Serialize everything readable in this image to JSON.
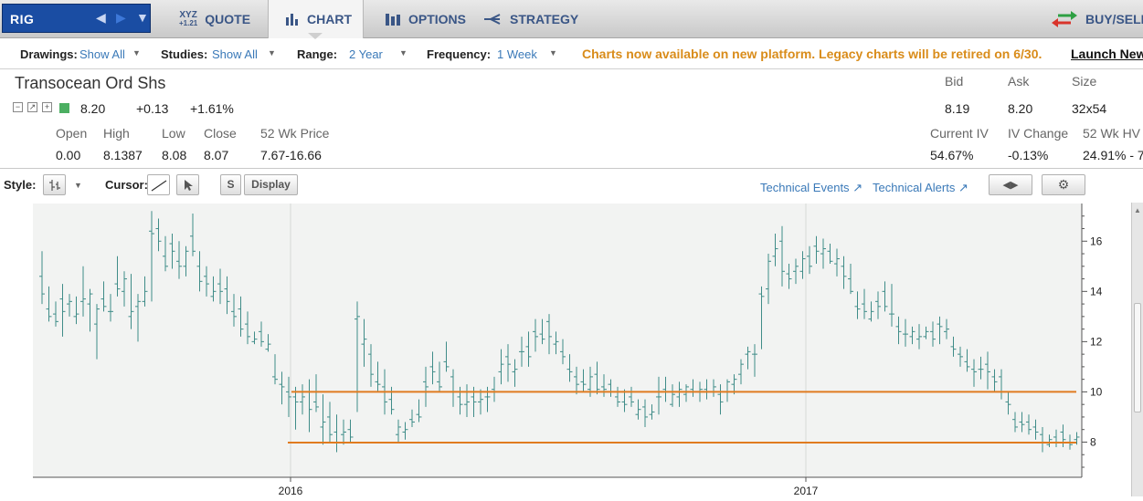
{
  "symbol": {
    "ticker": "RIG"
  },
  "tabs": [
    {
      "label": "QUOTE",
      "icon": "xyz-quote-icon",
      "icon_text": "XYZ",
      "icon_sub": "+1.21"
    },
    {
      "label": "CHART",
      "icon": "bar-chart-icon"
    },
    {
      "label": "OPTIONS",
      "icon": "options-icon"
    },
    {
      "label": "STRATEGY",
      "icon": "strategy-icon"
    },
    {
      "label": "BUY/SELL",
      "icon": "buy-sell-arrows-icon"
    }
  ],
  "active_tab": "CHART",
  "settings": {
    "drawings_label": "Drawings:",
    "drawings_value": "Show All",
    "studies_label": "Studies:",
    "studies_value": "Show All",
    "range_label": "Range:",
    "range_value": "2 Year",
    "frequency_label": "Frequency:",
    "frequency_value": "1 Week",
    "notice": "Charts now available on new platform. Legacy charts will be retired on 6/30.",
    "launch_link": "Launch New"
  },
  "quote": {
    "name": "Transocean Ord Shs",
    "last": "8.20",
    "change": "+0.13",
    "change_pct": "+1.61%",
    "open_label": "Open",
    "open": "0.00",
    "high_label": "High",
    "high": "8.1387",
    "low_label": "Low",
    "low": "8.08",
    "close_label": "Close",
    "close": "8.07",
    "wk52_label": "52 Wk Price",
    "wk52": "7.67-16.66",
    "bid_label": "Bid",
    "bid": "8.19",
    "ask_label": "Ask",
    "ask": "8.20",
    "size_label": "Size",
    "size": "32x54",
    "iv_label": "Current IV",
    "iv": "54.67%",
    "ivchg_label": "IV Change",
    "ivchg": "-0.13%",
    "hv_label": "52 Wk HV",
    "hv": "24.91% - 7"
  },
  "chart_toolbar": {
    "style_label": "Style:",
    "cursor_label": "Cursor:",
    "s_button": "S",
    "display_button": "Display",
    "tech_events": "Technical Events",
    "tech_alerts": "Technical Alerts"
  },
  "colors": {
    "bar": "#3f8c88",
    "support": "#e07b20",
    "accent_link": "#3a79b8",
    "notice": "#d98c1a"
  },
  "chart_data": {
    "type": "ohlc-bar",
    "frequency": "weekly",
    "x_ticks": [
      "2016",
      "2017"
    ],
    "y_ticks": [
      8,
      10,
      12,
      14,
      16
    ],
    "ylim": [
      6.6,
      17.5
    ],
    "bars": [
      [
        14.6,
        15.6,
        13.5,
        13.9
      ],
      [
        13.3,
        14.2,
        12.8,
        13.0
      ],
      [
        13.1,
        13.6,
        12.6,
        12.8
      ],
      [
        13.7,
        14.3,
        12.2,
        13.2
      ],
      [
        13.5,
        13.9,
        13.0,
        13.6
      ],
      [
        13.0,
        13.8,
        12.7,
        13.1
      ],
      [
        13.6,
        15.0,
        13.0,
        13.7
      ],
      [
        13.5,
        14.1,
        12.4,
        13.9
      ],
      [
        12.7,
        13.5,
        11.3,
        13.3
      ],
      [
        13.7,
        14.4,
        13.2,
        13.4
      ],
      [
        13.2,
        13.9,
        12.8,
        13.2
      ],
      [
        14.3,
        15.4,
        13.8,
        14.1
      ],
      [
        14.0,
        14.8,
        13.4,
        14.5
      ],
      [
        13.0,
        14.7,
        12.5,
        13.2
      ],
      [
        13.4,
        13.9,
        12.0,
        13.6
      ],
      [
        13.6,
        14.6,
        13.4,
        14.0
      ],
      [
        16.4,
        17.2,
        13.6,
        16.3
      ],
      [
        16.5,
        16.9,
        15.6,
        16.0
      ],
      [
        15.4,
        16.2,
        14.8,
        15.0
      ],
      [
        15.9,
        16.3,
        14.9,
        15.6
      ],
      [
        15.2,
        16.0,
        14.5,
        15.0
      ],
      [
        15.0,
        15.8,
        14.6,
        15.6
      ],
      [
        16.2,
        17.1,
        15.4,
        15.6
      ],
      [
        15.0,
        15.6,
        14.0,
        14.4
      ],
      [
        14.6,
        15.0,
        13.8,
        14.3
      ],
      [
        13.8,
        14.6,
        13.6,
        14.0
      ],
      [
        14.3,
        14.9,
        13.5,
        14.0
      ],
      [
        14.1,
        14.6,
        13.1,
        13.6
      ],
      [
        13.2,
        13.9,
        12.6,
        13.0
      ],
      [
        13.3,
        13.8,
        12.2,
        12.5
      ],
      [
        12.7,
        13.2,
        11.9,
        12.2
      ],
      [
        12.0,
        12.4,
        11.9,
        12.1
      ],
      [
        12.4,
        12.8,
        11.8,
        12.0
      ],
      [
        11.7,
        12.3,
        11.6,
        11.9
      ],
      [
        10.6,
        11.5,
        10.3,
        10.5
      ],
      [
        10.3,
        10.8,
        9.5,
        10.2
      ],
      [
        10.0,
        10.6,
        9.0,
        9.8
      ],
      [
        9.8,
        10.2,
        8.5,
        9.6
      ],
      [
        9.6,
        10.3,
        9.1,
        9.8
      ],
      [
        10.0,
        10.5,
        8.4,
        9.3
      ],
      [
        9.6,
        10.7,
        9.2,
        9.4
      ],
      [
        8.6,
        9.9,
        7.9,
        8.8
      ],
      [
        9.0,
        9.6,
        8.0,
        8.3
      ],
      [
        8.4,
        9.1,
        7.6,
        8.0
      ],
      [
        8.3,
        8.9,
        7.9,
        8.4
      ],
      [
        8.5,
        8.9,
        8.0,
        8.2
      ],
      [
        12.9,
        13.6,
        9.2,
        13.0
      ],
      [
        11.9,
        12.9,
        11.0,
        12.1
      ],
      [
        11.5,
        11.9,
        10.2,
        10.7
      ],
      [
        10.4,
        11.2,
        10.0,
        10.3
      ],
      [
        10.2,
        10.9,
        9.1,
        9.6
      ],
      [
        9.7,
        10.2,
        9.1,
        9.3
      ],
      [
        8.3,
        8.9,
        8.0,
        8.6
      ],
      [
        8.4,
        8.8,
        8.1,
        8.5
      ],
      [
        8.9,
        9.3,
        8.6,
        8.8
      ],
      [
        9.1,
        9.7,
        8.8,
        9.0
      ],
      [
        10.4,
        11.0,
        9.4,
        10.2
      ],
      [
        11.0,
        11.6,
        10.3,
        10.8
      ],
      [
        10.4,
        11.2,
        10.0,
        10.2
      ],
      [
        11.2,
        12.0,
        10.8,
        11.0
      ],
      [
        10.6,
        10.9,
        9.4,
        10.0
      ],
      [
        9.8,
        10.2,
        9.1,
        9.5
      ],
      [
        9.5,
        10.3,
        9.0,
        9.6
      ],
      [
        9.8,
        10.2,
        9.0,
        9.6
      ],
      [
        9.6,
        10.1,
        9.1,
        9.7
      ],
      [
        9.8,
        10.2,
        9.2,
        9.8
      ],
      [
        10.1,
        10.6,
        9.6,
        10.0
      ],
      [
        10.8,
        11.7,
        10.3,
        11.1
      ],
      [
        11.4,
        11.9,
        10.4,
        11.1
      ],
      [
        10.8,
        11.3,
        10.2,
        10.9
      ],
      [
        11.6,
        12.2,
        11.0,
        11.6
      ],
      [
        11.8,
        12.4,
        11.0,
        11.4
      ],
      [
        12.4,
        12.9,
        11.6,
        12.2
      ],
      [
        12.3,
        12.9,
        11.9,
        12.1
      ],
      [
        12.8,
        13.1,
        11.5,
        12.2
      ],
      [
        11.9,
        12.4,
        11.5,
        12.0
      ],
      [
        11.6,
        12.1,
        11.1,
        11.4
      ],
      [
        10.9,
        11.5,
        10.4,
        10.8
      ],
      [
        10.6,
        11.0,
        9.9,
        10.3
      ],
      [
        10.4,
        10.9,
        10.0,
        10.3
      ],
      [
        10.1,
        11.0,
        9.8,
        10.6
      ],
      [
        10.7,
        11.2,
        9.9,
        10.1
      ],
      [
        10.2,
        10.7,
        9.8,
        10.1
      ],
      [
        10.3,
        10.5,
        9.8,
        10.0
      ],
      [
        9.8,
        10.2,
        9.4,
        9.6
      ],
      [
        9.6,
        10.1,
        9.2,
        9.5
      ],
      [
        9.8,
        10.2,
        9.4,
        9.6
      ],
      [
        9.1,
        9.7,
        8.9,
        9.3
      ],
      [
        9.4,
        9.7,
        8.6,
        9.0
      ],
      [
        9.1,
        9.5,
        8.9,
        9.2
      ],
      [
        9.8,
        10.6,
        9.1,
        9.8
      ],
      [
        10.1,
        10.6,
        9.6,
        10.0
      ],
      [
        9.5,
        10.3,
        9.4,
        9.9
      ],
      [
        9.8,
        10.4,
        9.4,
        10.1
      ],
      [
        9.9,
        10.3,
        9.6,
        10.2
      ],
      [
        10.1,
        10.5,
        9.8,
        10.0
      ],
      [
        10.0,
        10.4,
        9.6,
        10.1
      ],
      [
        10.1,
        10.5,
        9.7,
        10.0
      ],
      [
        10.0,
        10.5,
        9.8,
        10.2
      ],
      [
        9.9,
        10.3,
        9.1,
        9.6
      ],
      [
        10.0,
        10.5,
        9.6,
        10.4
      ],
      [
        10.3,
        10.7,
        9.9,
        10.5
      ],
      [
        10.7,
        11.3,
        10.3,
        11.1
      ],
      [
        11.5,
        11.8,
        10.9,
        11.6
      ],
      [
        11.5,
        11.9,
        10.6,
        11.5
      ],
      [
        13.9,
        14.2,
        11.7,
        13.8
      ],
      [
        14.1,
        15.5,
        13.5,
        15.2
      ],
      [
        15.4,
        16.3,
        15.0,
        15.7
      ],
      [
        16.0,
        16.6,
        14.2,
        14.8
      ],
      [
        14.7,
        15.1,
        14.1,
        14.5
      ],
      [
        14.8,
        15.3,
        14.3,
        15.0
      ],
      [
        14.8,
        15.6,
        14.5,
        15.3
      ],
      [
        15.4,
        15.8,
        14.7,
        15.0
      ],
      [
        15.8,
        16.2,
        15.1,
        15.6
      ],
      [
        15.5,
        16.1,
        14.9,
        15.7
      ],
      [
        15.6,
        15.9,
        15.1,
        15.2
      ],
      [
        15.1,
        15.7,
        14.6,
        15.3
      ],
      [
        15.0,
        15.4,
        14.1,
        14.6
      ],
      [
        14.5,
        15.1,
        13.9,
        14.0
      ],
      [
        13.4,
        14.0,
        12.9,
        13.3
      ],
      [
        13.5,
        14.1,
        12.9,
        13.2
      ],
      [
        12.9,
        13.6,
        12.8,
        13.2
      ],
      [
        13.6,
        14.0,
        12.9,
        13.4
      ],
      [
        14.0,
        14.4,
        13.2,
        13.4
      ],
      [
        13.1,
        14.3,
        12.6,
        13.1
      ],
      [
        12.6,
        13.0,
        11.9,
        12.4
      ],
      [
        12.3,
        12.9,
        11.8,
        12.3
      ],
      [
        12.2,
        12.6,
        11.9,
        12.4
      ],
      [
        12.1,
        12.7,
        11.7,
        12.2
      ],
      [
        12.2,
        12.6,
        12.1,
        12.4
      ],
      [
        12.4,
        12.8,
        11.8,
        12.1
      ],
      [
        12.7,
        13.0,
        11.9,
        12.6
      ],
      [
        12.4,
        12.9,
        12.1,
        12.5
      ],
      [
        11.8,
        12.2,
        11.4,
        11.7
      ],
      [
        11.5,
        11.8,
        11.0,
        11.4
      ],
      [
        11.2,
        11.7,
        10.8,
        11.0
      ],
      [
        10.9,
        11.3,
        10.2,
        10.8
      ],
      [
        10.9,
        11.4,
        10.5,
        10.9
      ],
      [
        11.1,
        11.6,
        10.1,
        10.8
      ],
      [
        10.6,
        10.9,
        10.0,
        10.4
      ],
      [
        10.6,
        10.9,
        9.7,
        10.0
      ],
      [
        9.6,
        10.0,
        9.1,
        9.5
      ],
      [
        8.9,
        9.2,
        8.4,
        8.6
      ],
      [
        8.8,
        9.2,
        8.4,
        8.7
      ],
      [
        8.8,
        9.1,
        8.3,
        8.5
      ],
      [
        8.6,
        8.9,
        8.1,
        8.4
      ],
      [
        8.3,
        8.6,
        7.6,
        8.0
      ],
      [
        7.9,
        8.3,
        7.8,
        8.1
      ],
      [
        8.2,
        8.5,
        7.8,
        8.0
      ],
      [
        8.4,
        8.7,
        7.8,
        8.1
      ],
      [
        8.0,
        8.3,
        7.7,
        7.9
      ],
      [
        8.1,
        8.4,
        7.9,
        8.2
      ]
    ],
    "support_lines": [
      {
        "from_date": "2016-01-01",
        "to_date": "2017-06-26",
        "y": 10.0
      },
      {
        "from_date": "2016-01-01",
        "to_date": "2017-06-26",
        "y": 7.98
      }
    ]
  }
}
